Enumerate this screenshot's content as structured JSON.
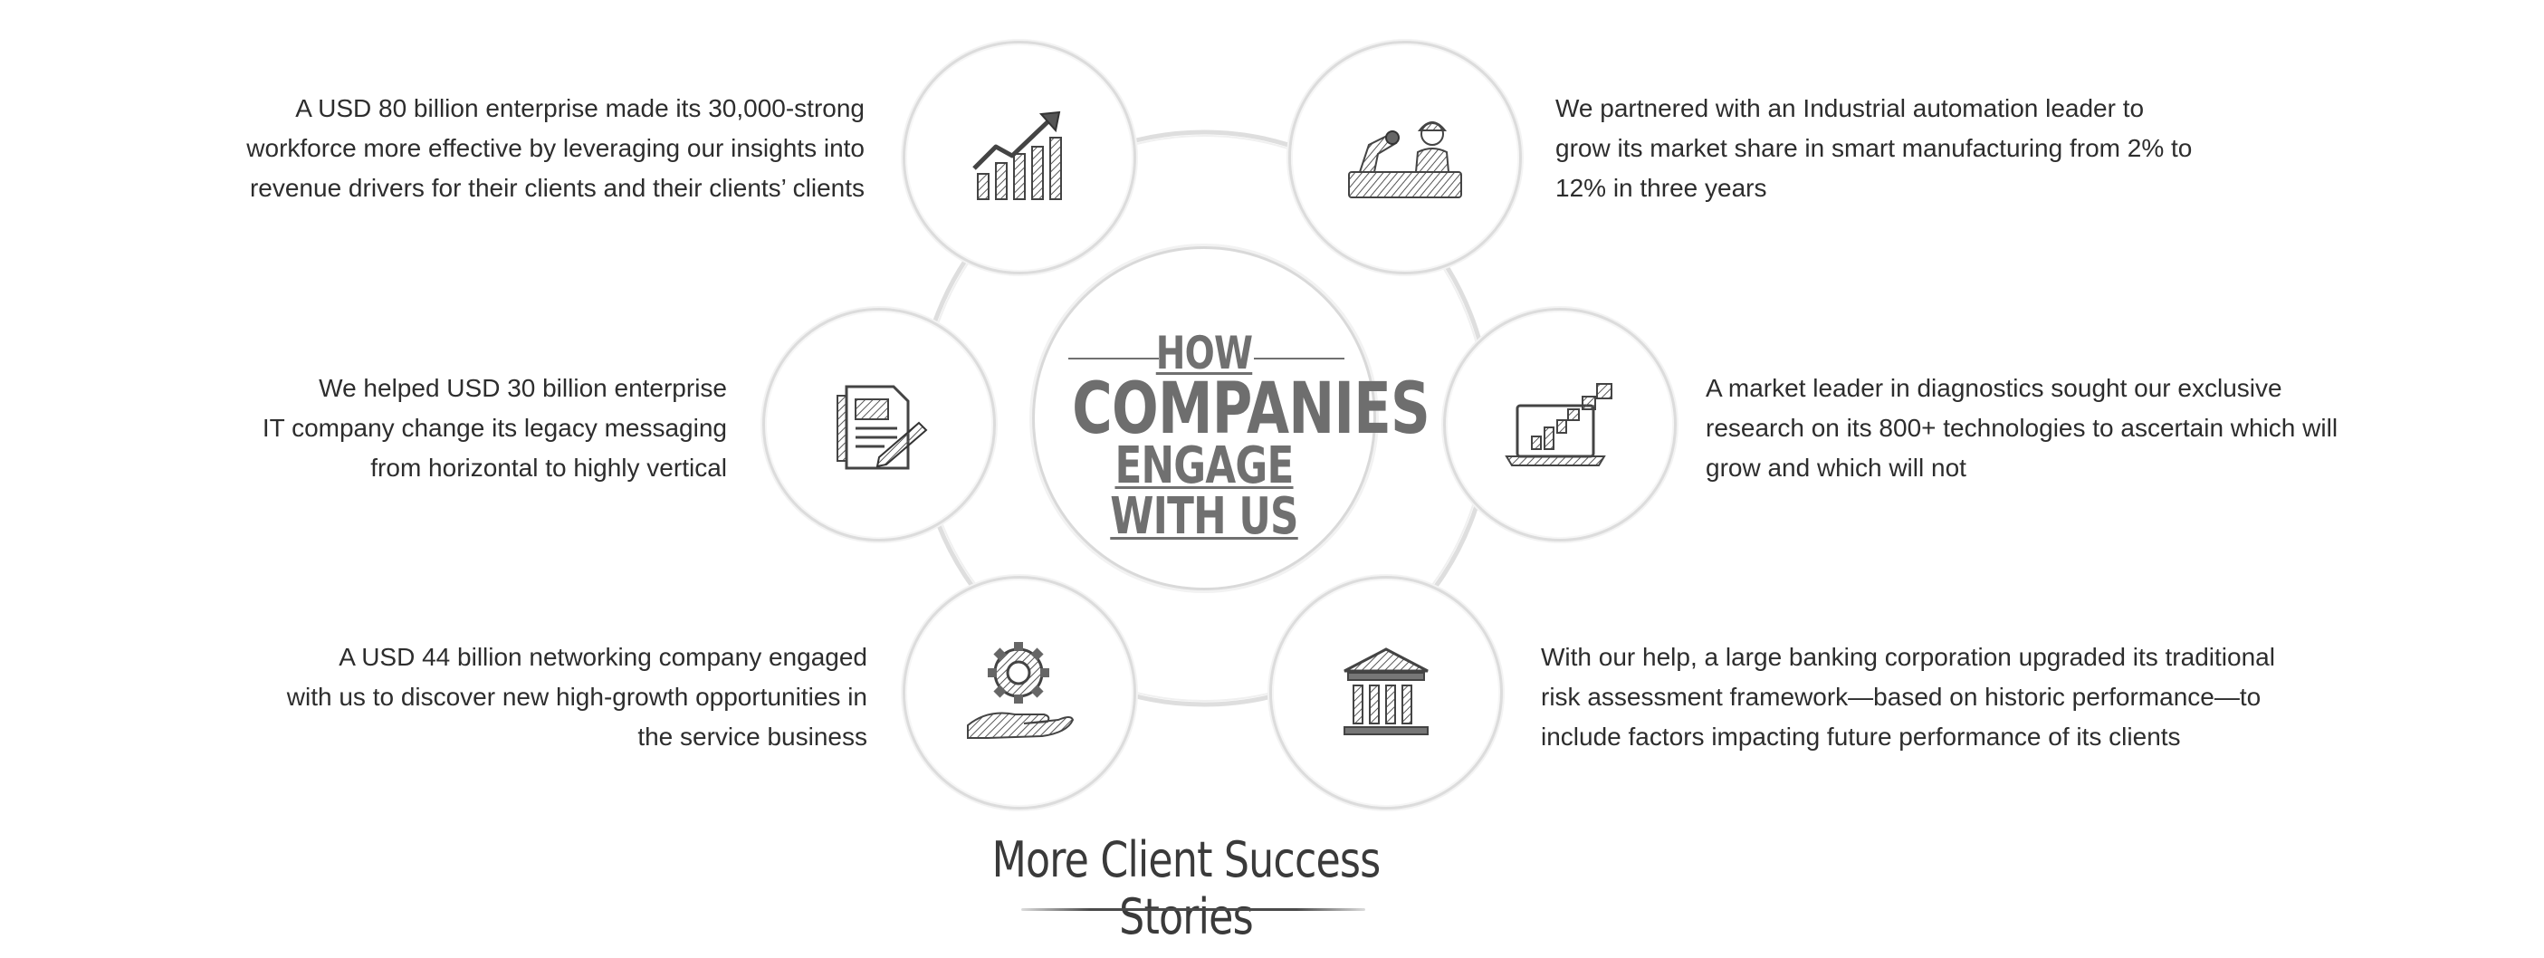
{
  "center": {
    "line1": "HOW",
    "line2": "COMPANIES",
    "line3": "ENGAGE WITH US"
  },
  "stories": [
    {
      "icon": "growth-chart-icon",
      "lines": [
        "A USD 80 billion enterprise made its 30,000-strong",
        "workforce more effective by leveraging our insights into",
        "revenue drivers for their clients and their clients’ clients"
      ]
    },
    {
      "icon": "factory-worker-icon",
      "lines": [
        "We partnered with an Industrial automation leader to",
        "grow its market share in smart manufacturing from 2% to",
        "12% in three years"
      ]
    },
    {
      "icon": "document-pencil-icon",
      "lines": [
        "We helped USD 30 billion enterprise",
        "IT company change its legacy messaging",
        "from horizontal to highly vertical"
      ]
    },
    {
      "icon": "laptop-analytics-icon",
      "lines": [
        "A market leader in diagnostics sought our exclusive",
        "research on its 800+ technologies to ascertain which will",
        "grow and which will not"
      ]
    },
    {
      "icon": "gear-hand-icon",
      "lines": [
        "A USD 44 billion networking company engaged",
        "with us to discover new high-growth opportunities in",
        "the service business"
      ]
    },
    {
      "icon": "bank-building-icon",
      "lines": [
        "With our help, a large banking corporation upgraded its traditional",
        "risk assessment framework—based on historic performance—to",
        "include factors impacting future performance of its clients"
      ]
    }
  ],
  "cta": {
    "label": "More Client Success Stories"
  }
}
